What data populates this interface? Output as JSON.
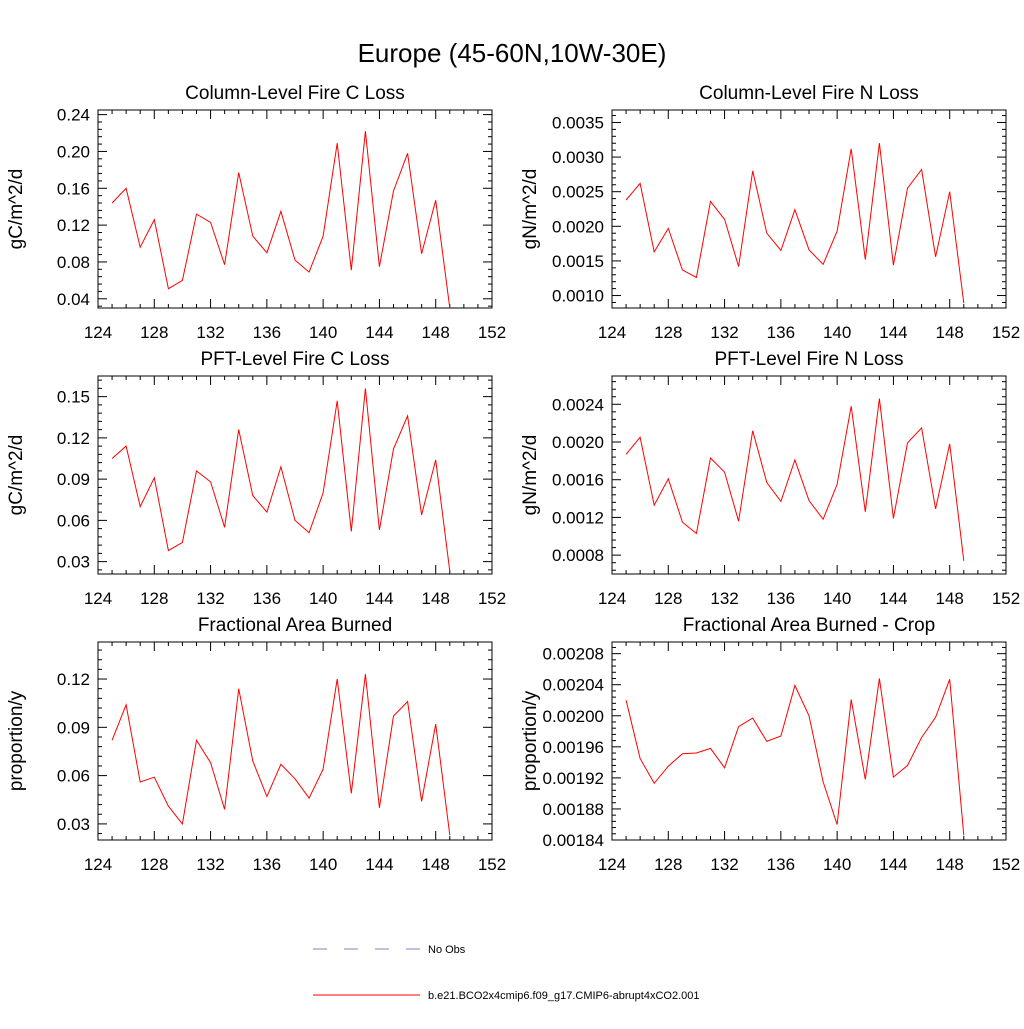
{
  "page_title": "Europe (45-60N,10W-30E)",
  "chart_data": [
    {
      "type": "line",
      "title": "Column-Level Fire C Loss",
      "xlabel": "",
      "ylabel": "gC/m^2/d",
      "xlim": [
        124,
        152
      ],
      "ylim": [
        0.03,
        0.245
      ],
      "xticks": [
        124,
        128,
        132,
        136,
        140,
        144,
        148,
        152
      ],
      "xtick_labels": [
        "124",
        "128",
        "132",
        "136",
        "140",
        "144",
        "148",
        "152"
      ],
      "yticks": [
        0.04,
        0.08,
        0.12,
        0.16,
        0.2,
        0.24
      ],
      "ytick_labels": [
        "0.04",
        "0.08",
        "0.12",
        "0.16",
        "0.20",
        "0.24"
      ],
      "series": [
        {
          "name": "b.e21.BCO2x4cmip6.f09_g17.CMIP6-abrupt4xCO2.001",
          "color": "#ff0000",
          "x": [
            125,
            126,
            127,
            128,
            129,
            130,
            131,
            132,
            133,
            134,
            135,
            136,
            137,
            138,
            139,
            140,
            141,
            142,
            143,
            144,
            145,
            146,
            147,
            148,
            149
          ],
          "values": [
            0.144,
            0.16,
            0.096,
            0.126,
            0.051,
            0.06,
            0.132,
            0.123,
            0.077,
            0.177,
            0.108,
            0.09,
            0.135,
            0.082,
            0.069,
            0.108,
            0.209,
            0.071,
            0.222,
            0.075,
            0.157,
            0.198,
            0.089,
            0.147,
            0.03
          ]
        }
      ]
    },
    {
      "type": "line",
      "title": "Column-Level Fire N Loss",
      "xlabel": "",
      "ylabel": "gN/m^2/d",
      "xlim": [
        124,
        152
      ],
      "ylim": [
        0.00082,
        0.00368
      ],
      "xticks": [
        124,
        128,
        132,
        136,
        140,
        144,
        148,
        152
      ],
      "xtick_labels": [
        "124",
        "128",
        "132",
        "136",
        "140",
        "144",
        "148",
        "152"
      ],
      "yticks": [
        0.001,
        0.0015,
        0.002,
        0.0025,
        0.003,
        0.0035
      ],
      "ytick_labels": [
        "0.0010",
        "0.0015",
        "0.0020",
        "0.0025",
        "0.0030",
        "0.0035"
      ],
      "series": [
        {
          "name": "b.e21.BCO2x4cmip6.f09_g17.CMIP6-abrupt4xCO2.001",
          "color": "#ff0000",
          "x": [
            125,
            126,
            127,
            128,
            129,
            130,
            131,
            132,
            133,
            134,
            135,
            136,
            137,
            138,
            139,
            140,
            141,
            142,
            143,
            144,
            145,
            146,
            147,
            148,
            149
          ],
          "values": [
            0.00238,
            0.00262,
            0.00163,
            0.00197,
            0.00137,
            0.00126,
            0.00236,
            0.0021,
            0.00142,
            0.0028,
            0.0019,
            0.00165,
            0.00224,
            0.00166,
            0.00145,
            0.00193,
            0.00312,
            0.00152,
            0.0032,
            0.00144,
            0.00255,
            0.00282,
            0.00156,
            0.0025,
            0.00089
          ]
        }
      ]
    },
    {
      "type": "line",
      "title": "PFT-Level Fire C Loss",
      "xlabel": "",
      "ylabel": "gC/m^2/d",
      "xlim": [
        124,
        152
      ],
      "ylim": [
        0.021,
        0.165
      ],
      "xticks": [
        124,
        128,
        132,
        136,
        140,
        144,
        148,
        152
      ],
      "xtick_labels": [
        "124",
        "128",
        "132",
        "136",
        "140",
        "144",
        "148",
        "152"
      ],
      "yticks": [
        0.03,
        0.06,
        0.09,
        0.12,
        0.15
      ],
      "ytick_labels": [
        "0.03",
        "0.06",
        "0.09",
        "0.12",
        "0.15"
      ],
      "series": [
        {
          "name": "b.e21.BCO2x4cmip6.f09_g17.CMIP6-abrupt4xCO2.001",
          "color": "#ff0000",
          "x": [
            125,
            126,
            127,
            128,
            129,
            130,
            131,
            132,
            133,
            134,
            135,
            136,
            137,
            138,
            139,
            140,
            141,
            142,
            143,
            144,
            145,
            146,
            147,
            148,
            149
          ],
          "values": [
            0.105,
            0.114,
            0.07,
            0.091,
            0.038,
            0.044,
            0.096,
            0.088,
            0.055,
            0.126,
            0.078,
            0.066,
            0.099,
            0.06,
            0.051,
            0.08,
            0.147,
            0.052,
            0.156,
            0.053,
            0.112,
            0.136,
            0.064,
            0.104,
            0.023
          ]
        }
      ]
    },
    {
      "type": "line",
      "title": "PFT-Level Fire N Loss",
      "xlabel": "",
      "ylabel": "gN/m^2/d",
      "xlim": [
        124,
        152
      ],
      "ylim": [
        0.0006,
        0.0027
      ],
      "xticks": [
        124,
        128,
        132,
        136,
        140,
        144,
        148,
        152
      ],
      "xtick_labels": [
        "124",
        "128",
        "132",
        "136",
        "140",
        "144",
        "148",
        "152"
      ],
      "yticks": [
        0.0008,
        0.0012,
        0.0016,
        0.002,
        0.0024
      ],
      "ytick_labels": [
        "0.0008",
        "0.0012",
        "0.0016",
        "0.0020",
        "0.0024"
      ],
      "series": [
        {
          "name": "b.e21.BCO2x4cmip6.f09_g17.CMIP6-abrupt4xCO2.001",
          "color": "#ff0000",
          "x": [
            125,
            126,
            127,
            128,
            129,
            130,
            131,
            132,
            133,
            134,
            135,
            136,
            137,
            138,
            139,
            140,
            141,
            142,
            143,
            144,
            145,
            146,
            147,
            148,
            149
          ],
          "values": [
            0.00187,
            0.00205,
            0.00133,
            0.00161,
            0.00115,
            0.00103,
            0.00183,
            0.00168,
            0.00116,
            0.00212,
            0.00157,
            0.00137,
            0.00181,
            0.00138,
            0.00118,
            0.00155,
            0.00238,
            0.00126,
            0.00246,
            0.00119,
            0.00199,
            0.00215,
            0.00129,
            0.00198,
            0.00074
          ]
        }
      ]
    },
    {
      "type": "line",
      "title": "Fractional Area Burned",
      "xlabel": "",
      "ylabel": "proportion/y",
      "xlim": [
        124,
        152
      ],
      "ylim": [
        0.02,
        0.143
      ],
      "xticks": [
        124,
        128,
        132,
        136,
        140,
        144,
        148,
        152
      ],
      "xtick_labels": [
        "124",
        "128",
        "132",
        "136",
        "140",
        "144",
        "148",
        "152"
      ],
      "yticks": [
        0.03,
        0.06,
        0.09,
        0.12
      ],
      "ytick_labels": [
        "0.03",
        "0.06",
        "0.09",
        "0.12"
      ],
      "series": [
        {
          "name": "b.e21.BCO2x4cmip6.f09_g17.CMIP6-abrupt4xCO2.001",
          "color": "#ff0000",
          "x": [
            125,
            126,
            127,
            128,
            129,
            130,
            131,
            132,
            133,
            134,
            135,
            136,
            137,
            138,
            139,
            140,
            141,
            142,
            143,
            144,
            145,
            146,
            147,
            148,
            149
          ],
          "values": [
            0.082,
            0.104,
            0.056,
            0.059,
            0.041,
            0.03,
            0.082,
            0.068,
            0.039,
            0.114,
            0.069,
            0.047,
            0.067,
            0.058,
            0.046,
            0.064,
            0.12,
            0.049,
            0.123,
            0.04,
            0.097,
            0.106,
            0.044,
            0.092,
            0.023
          ]
        }
      ]
    },
    {
      "type": "line",
      "title": "Fractional Area Burned - Crop",
      "xlabel": "",
      "ylabel": "proportion/y",
      "xlim": [
        124,
        152
      ],
      "ylim": [
        0.00184,
        0.002095
      ],
      "xticks": [
        124,
        128,
        132,
        136,
        140,
        144,
        148,
        152
      ],
      "xtick_labels": [
        "124",
        "128",
        "132",
        "136",
        "140",
        "144",
        "148",
        "152"
      ],
      "yticks": [
        0.00184,
        0.00188,
        0.00192,
        0.00196,
        0.002,
        0.00204,
        0.00208
      ],
      "ytick_labels": [
        "0.00184",
        "0.00188",
        "0.00192",
        "0.00196",
        "0.00200",
        "0.00204",
        "0.00208"
      ],
      "series": [
        {
          "name": "b.e21.BCO2x4cmip6.f09_g17.CMIP6-abrupt4xCO2.001",
          "color": "#ff0000",
          "x": [
            125,
            126,
            127,
            128,
            129,
            130,
            131,
            132,
            133,
            134,
            135,
            136,
            137,
            138,
            139,
            140,
            141,
            142,
            143,
            144,
            145,
            146,
            147,
            148,
            149
          ],
          "values": [
            0.00202,
            0.001945,
            0.001913,
            0.001935,
            0.001951,
            0.001952,
            0.001958,
            0.001933,
            0.001986,
            0.001997,
            0.001967,
            0.001974,
            0.002039,
            0.002,
            0.001915,
            0.00186,
            0.002021,
            0.001918,
            0.002048,
            0.001921,
            0.001936,
            0.001972,
            0.001998,
            0.002047,
            0.001846
          ]
        }
      ]
    }
  ],
  "legend": [
    {
      "label": "No Obs",
      "color": "#8080c0",
      "dash": true
    },
    {
      "label": "b.e21.BCO2x4cmip6.f09_g17.CMIP6-abrupt4xCO2.001",
      "color": "#ff0000",
      "dash": false
    }
  ]
}
